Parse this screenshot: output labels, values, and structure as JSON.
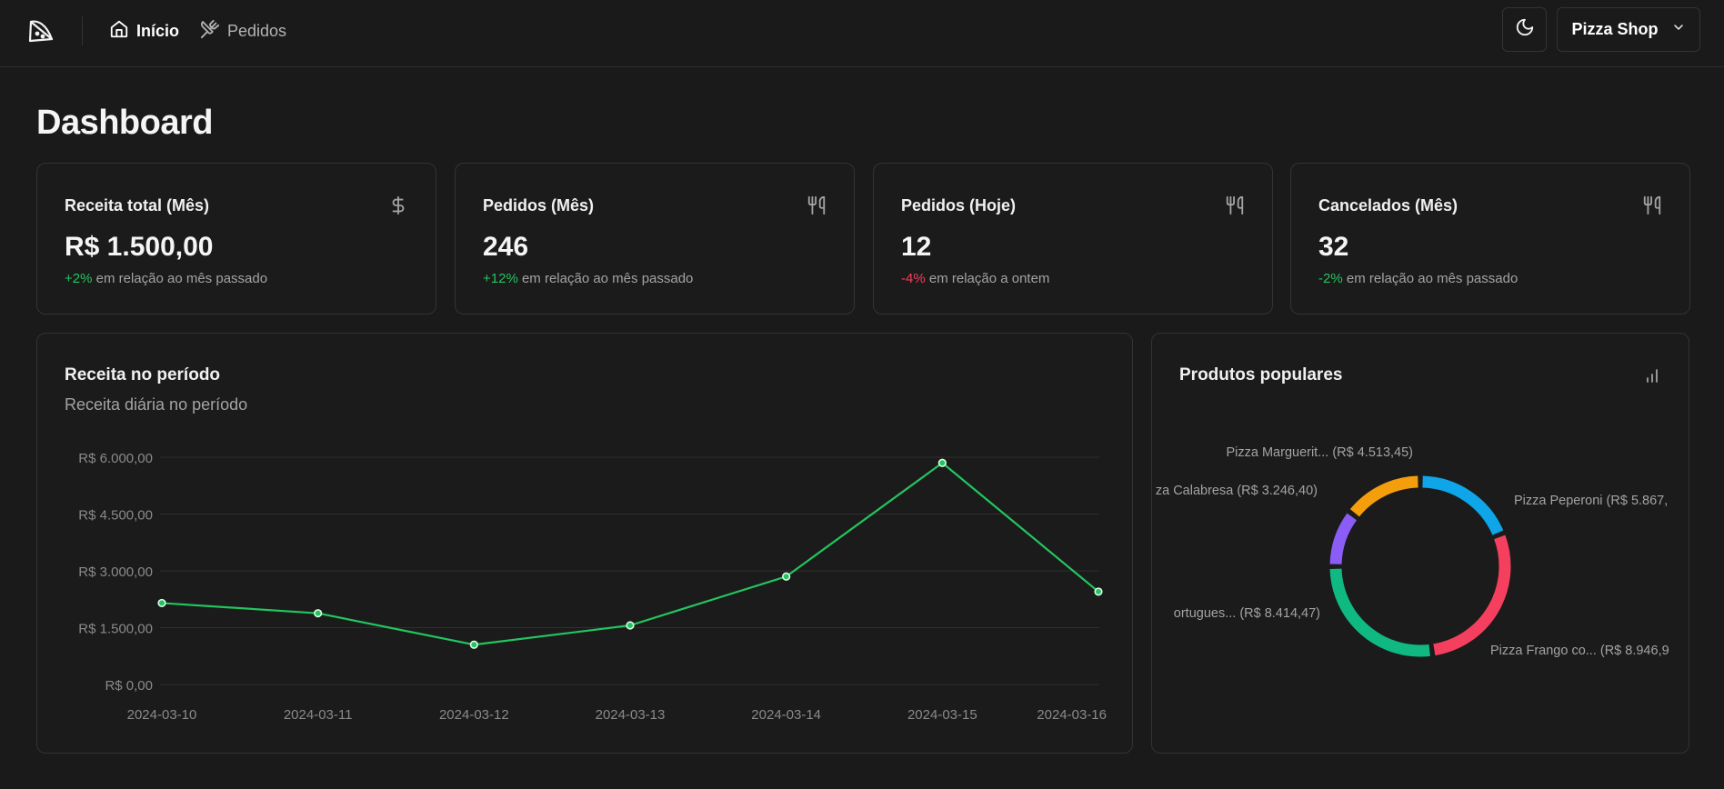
{
  "nav": {
    "home_label": "Início",
    "orders_label": "Pedidos",
    "store_name": "Pizza Shop",
    "icons": [
      "pizza-logo-icon",
      "home-icon",
      "utensils-crossed-icon",
      "moon-icon",
      "chevron-down-icon"
    ]
  },
  "page": {
    "title": "Dashboard"
  },
  "cards": [
    {
      "title": "Receita total (Mês)",
      "icon": "dollar-sign-icon",
      "value": "R$ 1.500,00",
      "delta": "+2%",
      "note": " em relação ao mês passado",
      "trend": "positive"
    },
    {
      "title": "Pedidos (Mês)",
      "icon": "utensils-icon",
      "value": "246",
      "delta": "+12%",
      "note": " em relação ao mês passado",
      "trend": "positive"
    },
    {
      "title": "Pedidos (Hoje)",
      "icon": "utensils-icon",
      "value": "12",
      "delta": "-4%",
      "note": " em relação a ontem",
      "trend": "negative"
    },
    {
      "title": "Cancelados (Mês)",
      "icon": "utensils-icon",
      "value": "32",
      "delta": "-2%",
      "note": " em relação ao mês passado",
      "trend": "positive"
    }
  ],
  "revenue": {
    "title": "Receita no período",
    "subtitle": "Receita diária no período"
  },
  "popular": {
    "title": "Produtos populares",
    "icon": "bar-chart-icon"
  },
  "colors": {
    "line": "#22c55e",
    "positive": "#22c55e",
    "negative": "#f43f5e"
  },
  "chart_data": [
    {
      "type": "line",
      "x": [
        "2024-03-10",
        "2024-03-11",
        "2024-03-12",
        "2024-03-13",
        "2024-03-14",
        "2024-03-15",
        "2024-03-16"
      ],
      "series": [
        {
          "values": [
            2150,
            1880,
            1050,
            1560,
            2850,
            5850,
            2450
          ],
          "color": "#22c55e"
        }
      ],
      "yticks": [
        "R$ 0,00",
        "R$ 1.500,00",
        "R$ 3.000,00",
        "R$ 4.500,00",
        "R$ 6.000,00"
      ],
      "ytick_values": [
        0,
        1500,
        3000,
        4500,
        6000
      ],
      "ylim": [
        0,
        6000
      ],
      "grid": true
    },
    {
      "type": "pie",
      "variant": "donut",
      "slices": [
        {
          "label": "Pizza Peperoni (R$ 5.867,",
          "value": 5867,
          "color": "#0ea5e9"
        },
        {
          "label": "Pizza Frango co... (R$ 8.946,9",
          "value": 8946.9,
          "color": "#f43f5e"
        },
        {
          "label": "ortugues... (R$ 8.414,47)",
          "value": 8414.47,
          "color": "#10b981"
        },
        {
          "label": "za Calabresa (R$ 3.246,40)",
          "value": 3246.4,
          "color": "#8b5cf6"
        },
        {
          "label": "Pizza Marguerit... (R$ 4.513,45)",
          "value": 4513.45,
          "color": "#f59e0b"
        }
      ]
    }
  ]
}
